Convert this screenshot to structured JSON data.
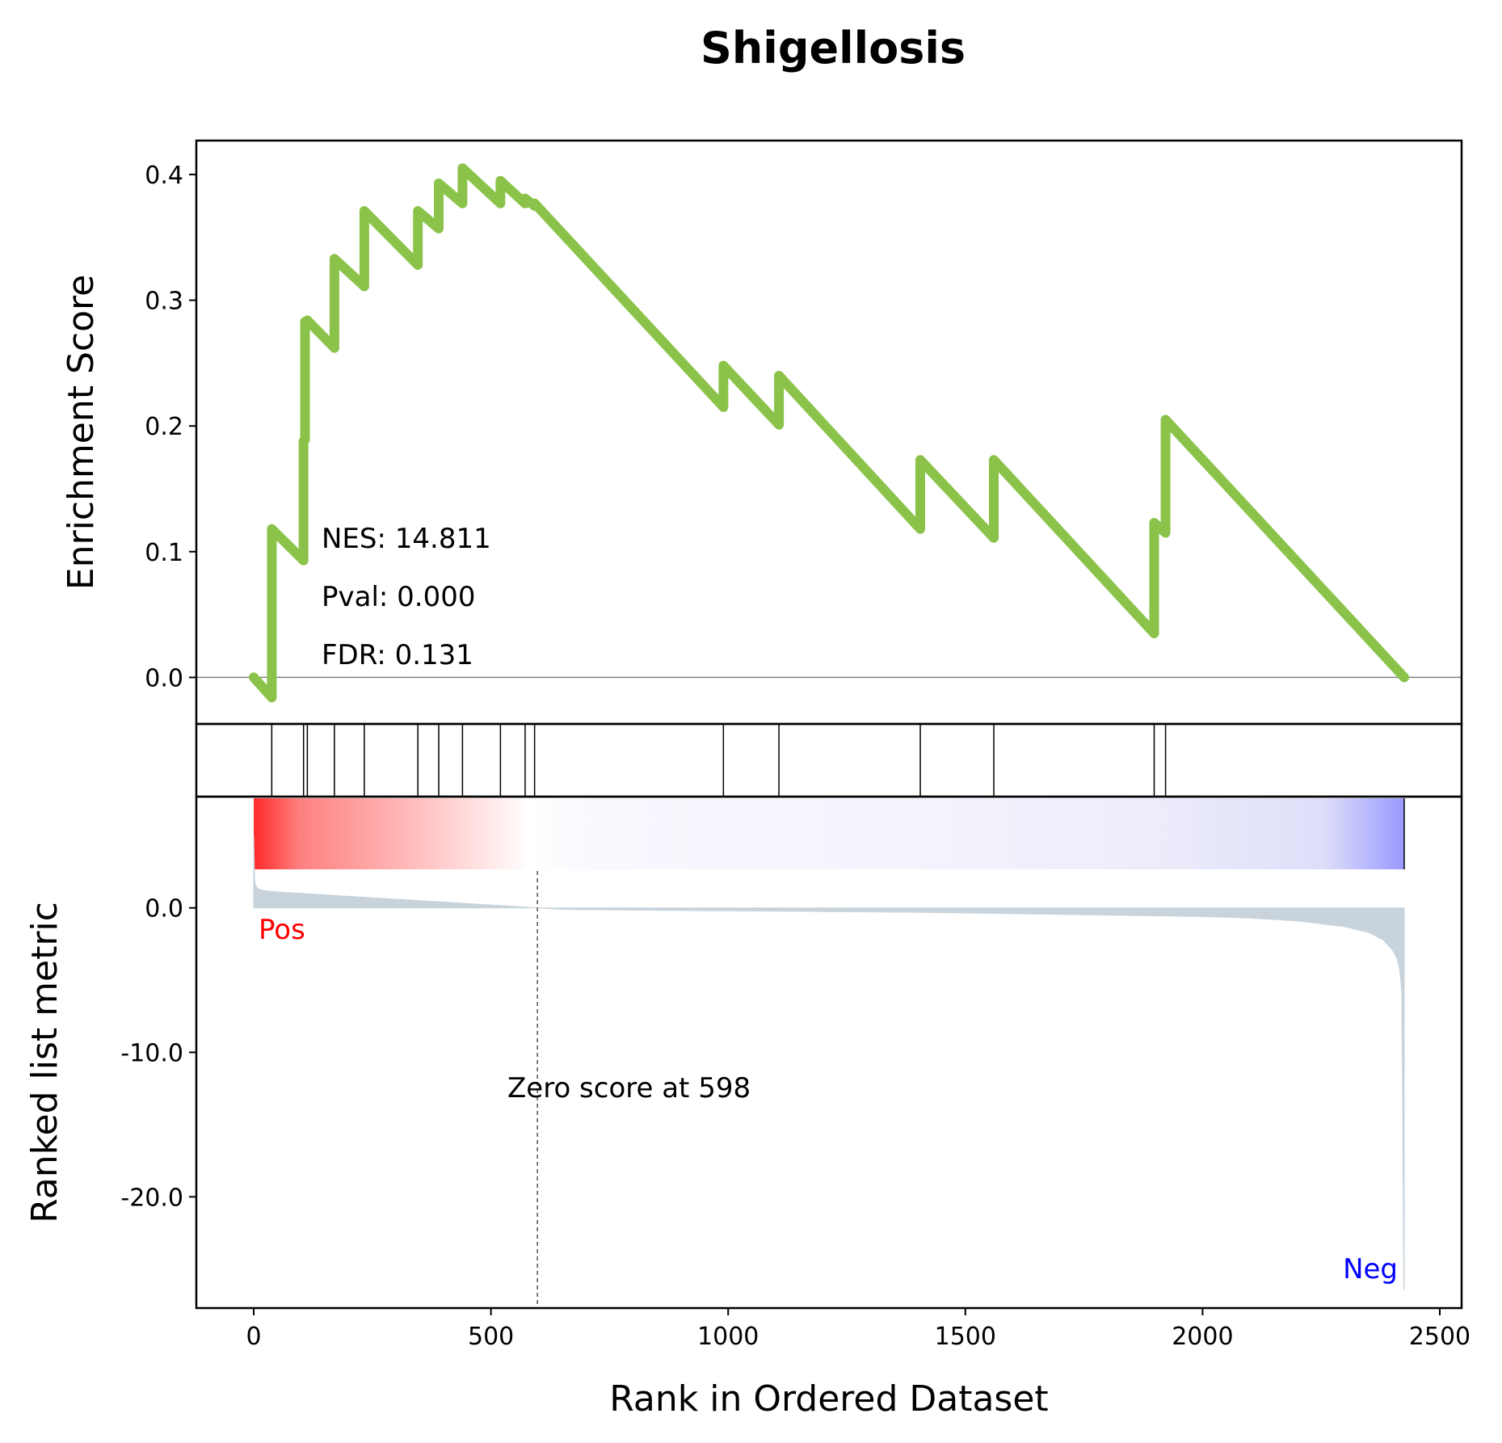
{
  "chart_data": {
    "type": "line",
    "title": "Shigellosis",
    "xlabel": "Rank in Ordered Dataset",
    "panels": {
      "enrichment": {
        "ylabel": "Enrichment Score",
        "ylim": [
          -0.037,
          0.427
        ],
        "y_ticks": [
          0.0,
          0.1,
          0.2,
          0.3,
          0.4
        ],
        "y_tick_labels": [
          "0.0",
          "0.1",
          "0.2",
          "0.3",
          "0.4"
        ],
        "color": "#8bc34a",
        "series": [
          {
            "x": [
              0,
              38,
              38,
              105,
              105,
              108,
              108,
              113,
              113,
              170,
              170,
              233,
              233,
              346,
              346,
              390,
              390,
              440,
              440,
              520,
              520,
              572,
              572,
              592,
              592,
              990,
              990,
              1107,
              1107,
              1405,
              1405,
              1560,
              1560,
              1898,
              1898,
              1922,
              1922,
              2425
            ],
            "y": [
              0.0,
              -0.016,
              0.118,
              0.093,
              0.188,
              0.189,
              0.283,
              0.282,
              0.284,
              0.262,
              0.333,
              0.311,
              0.371,
              0.328,
              0.371,
              0.357,
              0.393,
              0.377,
              0.405,
              0.377,
              0.395,
              0.377,
              0.381,
              0.375,
              0.377,
              0.215,
              0.248,
              0.201,
              0.24,
              0.118,
              0.173,
              0.111,
              0.173,
              0.035,
              0.123,
              0.115,
              0.205,
              0.0
            ]
          }
        ],
        "baseline": 0.0,
        "stats": {
          "nes": "NES: 14.811",
          "pval": "Pval: 0.000",
          "fdr": "FDR: 0.131"
        }
      },
      "hits": {
        "positions": [
          38,
          105,
          113,
          170,
          233,
          346,
          390,
          440,
          520,
          572,
          592,
          990,
          1107,
          1405,
          1560,
          1898,
          1922
        ]
      },
      "ranked_metric": {
        "ylabel": "Ranked list metric",
        "ylim": [
          -27.7,
          7.7
        ],
        "y_ticks": [
          0.0,
          -10.0,
          -20.0
        ],
        "y_tick_labels": [
          "0.0",
          "-10.0",
          "-20.0"
        ],
        "fill_color": "#c8d3db",
        "x": [
          0,
          2,
          5,
          10,
          20,
          50,
          100,
          200,
          300,
          400,
          500,
          598,
          650,
          800,
          1000,
          1200,
          1400,
          1600,
          1800,
          2000,
          2100,
          2200,
          2300,
          2350,
          2380,
          2400,
          2410,
          2415,
          2418,
          2420,
          2422,
          2424,
          2425
        ],
        "y": [
          5.0,
          1.8,
          1.5,
          1.3,
          1.2,
          1.1,
          1.0,
          0.8,
          0.6,
          0.4,
          0.2,
          0.0,
          -0.1,
          -0.15,
          -0.2,
          -0.25,
          -0.3,
          -0.4,
          -0.5,
          -0.6,
          -0.7,
          -0.9,
          -1.3,
          -1.7,
          -2.2,
          -2.9,
          -3.5,
          -4.2,
          -5.0,
          -6.0,
          -15.0,
          -26.0,
          -26.5
        ],
        "zero_cross": 598,
        "zero_label": "Zero score at 598",
        "pos_label": "Pos",
        "neg_label": "Neg",
        "pos_color": "#ff0000",
        "neg_color": "#0000ff"
      }
    },
    "x_ticks": [
      0,
      500,
      1000,
      1500,
      2000,
      2500
    ],
    "x_tick_labels": [
      "0",
      "500",
      "1000",
      "1500",
      "2000",
      "2500"
    ],
    "xlim": [
      -121,
      2546
    ],
    "n_genes": 2425
  }
}
